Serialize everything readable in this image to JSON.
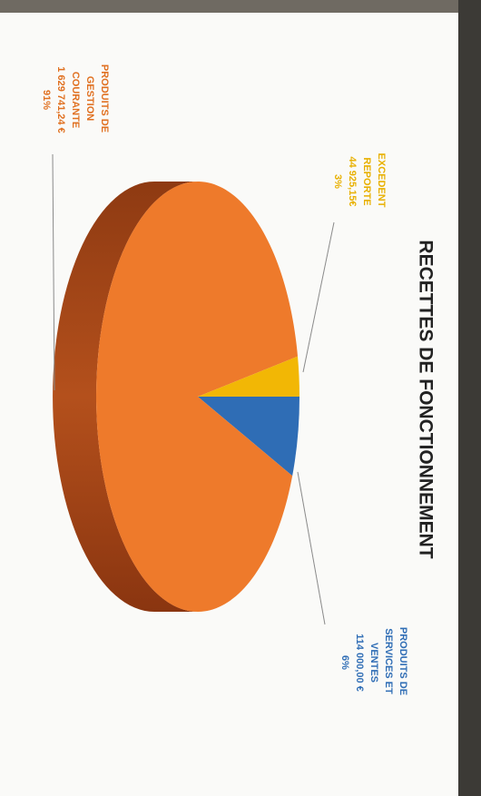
{
  "chart_data": {
    "type": "pie",
    "title": "RECETTES DE FONCTIONNEMENT",
    "categories": [
      "PRODUITS DE SERVICES ET VENTES",
      "PRODUITS DE GESTION COURANTE",
      "EXCEDENT REPORTE"
    ],
    "amounts": [
      "114 000,00 €",
      "1 629 741,24 €",
      "44 925,15€"
    ],
    "values": [
      6,
      91,
      3
    ],
    "value_labels": [
      "6%",
      "91%",
      "3%"
    ],
    "colors": [
      "#2f6db5",
      "#ee7a2b",
      "#f2b705"
    ],
    "label_colors": [
      "#2f6db5",
      "#e07020",
      "#e8b000"
    ]
  }
}
